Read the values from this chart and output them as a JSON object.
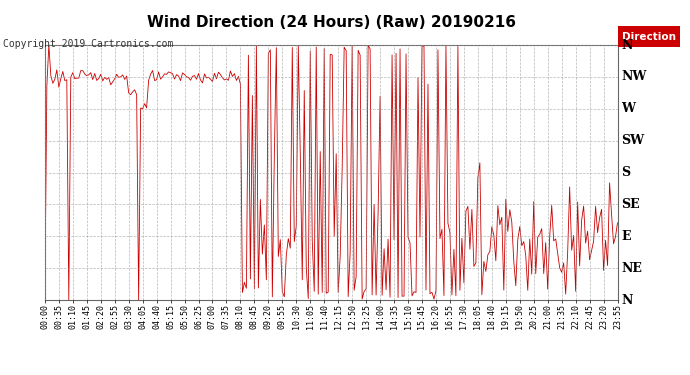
{
  "title": "Wind Direction (24 Hours) (Raw) 20190216",
  "copyright": "Copyright 2019 Cartronics.com",
  "legend_label": "Direction",
  "bg_color": "#ffffff",
  "plot_bg_color": "#ffffff",
  "line_color": "#cc0000",
  "grid_color": "#aaaaaa",
  "ytick_labels": [
    "N",
    "NW",
    "W",
    "SW",
    "S",
    "SE",
    "E",
    "NE",
    "N"
  ],
  "ytick_values": [
    360,
    315,
    270,
    225,
    180,
    135,
    90,
    45,
    0
  ],
  "ylim": [
    0,
    360
  ],
  "legend_bg": "#cc0000",
  "legend_text_color": "#ffffff",
  "title_fontsize": 11,
  "copyright_fontsize": 7,
  "tick_label_fontsize": 8,
  "ylabel_fontsize": 9
}
